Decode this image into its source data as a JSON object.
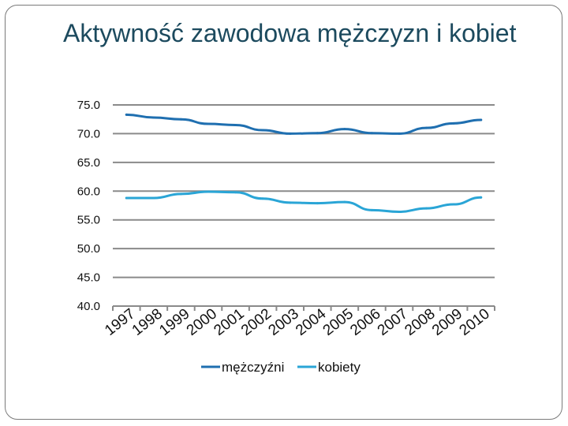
{
  "slide": {
    "title": "Aktywność zawodowa mężczyzn i kobiet"
  },
  "chart_data": {
    "type": "line",
    "title": "",
    "xlabel": "",
    "ylabel": "",
    "x": [
      "1997",
      "1998",
      "1999",
      "2000",
      "2001",
      "2002",
      "2003",
      "2004",
      "2005",
      "2006",
      "2007",
      "2008",
      "2009",
      "2010"
    ],
    "y_ticks": [
      "40.0",
      "45.0",
      "50.0",
      "55.0",
      "60.0",
      "65.0",
      "70.0",
      "75.0"
    ],
    "ylim": [
      40,
      75
    ],
    "grid": true,
    "legend_position": "bottom",
    "series": [
      {
        "name": "mężczyźni",
        "color": "#1f6fb0",
        "values": [
          73.3,
          72.8,
          72.5,
          71.7,
          71.5,
          70.6,
          70.0,
          70.1,
          70.8,
          70.1,
          70.0,
          71.0,
          71.8,
          72.4
        ]
      },
      {
        "name": "kobiety",
        "color": "#2aa5d6",
        "values": [
          58.8,
          58.8,
          59.5,
          59.9,
          59.8,
          58.7,
          58.0,
          57.9,
          58.1,
          56.7,
          56.4,
          57.0,
          57.7,
          58.9
        ]
      }
    ]
  }
}
